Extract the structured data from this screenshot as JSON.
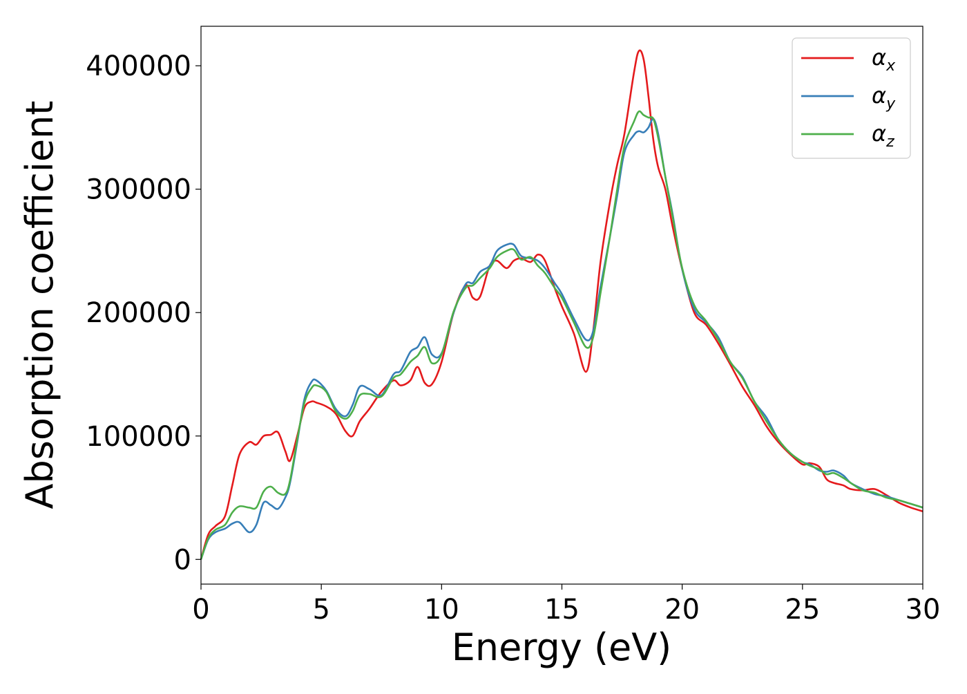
{
  "chart_data": {
    "type": "line",
    "title": "",
    "xlabel": "Energy (eV)",
    "ylabel": "Absorption coefficient",
    "xlim": [
      0,
      30
    ],
    "ylim": [
      -20000,
      432000
    ],
    "xticks": [
      0,
      5,
      10,
      15,
      20,
      25,
      30
    ],
    "yticks": [
      0,
      100000,
      200000,
      300000,
      400000
    ],
    "xtick_labels": [
      "0",
      "5",
      "10",
      "15",
      "20",
      "25",
      "30"
    ],
    "ytick_labels": [
      "0",
      "100000",
      "200000",
      "300000",
      "400000"
    ],
    "grid": false,
    "legend_position": "top-right",
    "legend": [
      {
        "symbol": "α",
        "sub": "x"
      },
      {
        "symbol": "α",
        "sub": "y"
      },
      {
        "symbol": "α",
        "sub": "z"
      }
    ],
    "series": [
      {
        "name": "αx",
        "color": "#e41a1c",
        "x": [
          0,
          0.3,
          0.6,
          1.0,
          1.3,
          1.6,
          2.0,
          2.3,
          2.6,
          2.9,
          3.2,
          3.5,
          3.7,
          4.0,
          4.3,
          4.6,
          4.8,
          5.2,
          5.6,
          6.0,
          6.3,
          6.6,
          7.0,
          7.5,
          8.0,
          8.3,
          8.7,
          9.0,
          9.3,
          9.6,
          10.0,
          10.5,
          11.0,
          11.3,
          11.6,
          12.0,
          12.3,
          12.7,
          13.0,
          13.3,
          13.7,
          14.0,
          14.3,
          14.7,
          15.0,
          15.5,
          16.0,
          16.3,
          16.6,
          17.0,
          17.3,
          17.6,
          18.0,
          18.2,
          18.4,
          18.6,
          18.8,
          19.0,
          19.3,
          19.6,
          20.0,
          20.5,
          21.0,
          21.5,
          22.0,
          22.5,
          23.0,
          23.5,
          24.0,
          24.5,
          25.0,
          25.3,
          25.7,
          26.0,
          26.3,
          26.7,
          27.0,
          27.5,
          28.0,
          28.5,
          29.0,
          29.5,
          30.0
        ],
        "y": [
          0,
          20000,
          27000,
          35000,
          60000,
          85000,
          95000,
          93000,
          100000,
          101000,
          103000,
          88000,
          80000,
          100000,
          123000,
          128000,
          127000,
          124000,
          118000,
          104000,
          100000,
          112000,
          122000,
          136000,
          145000,
          141000,
          145000,
          156000,
          143000,
          142000,
          160000,
          200000,
          222000,
          212000,
          213000,
          238000,
          242000,
          236000,
          242000,
          244000,
          241000,
          247000,
          242000,
          220000,
          205000,
          183000,
          152000,
          185000,
          240000,
          290000,
          320000,
          345000,
          395000,
          412000,
          405000,
          375000,
          340000,
          318000,
          300000,
          270000,
          235000,
          200000,
          190000,
          175000,
          158000,
          140000,
          125000,
          108000,
          95000,
          85000,
          77000,
          78000,
          75000,
          65000,
          62000,
          60000,
          57000,
          56000,
          57000,
          52000,
          46000,
          42000,
          39000
        ]
      },
      {
        "name": "αy",
        "color": "#377eb8",
        "x": [
          0,
          0.3,
          0.6,
          1.0,
          1.3,
          1.6,
          2.0,
          2.3,
          2.6,
          2.9,
          3.2,
          3.5,
          3.7,
          4.0,
          4.3,
          4.6,
          4.8,
          5.2,
          5.6,
          6.0,
          6.3,
          6.6,
          7.0,
          7.5,
          8.0,
          8.3,
          8.7,
          9.0,
          9.3,
          9.6,
          10.0,
          10.5,
          11.0,
          11.3,
          11.6,
          12.0,
          12.3,
          12.7,
          13.0,
          13.3,
          13.7,
          14.0,
          14.3,
          14.7,
          15.0,
          15.5,
          16.0,
          16.3,
          16.6,
          17.0,
          17.3,
          17.6,
          18.0,
          18.2,
          18.4,
          18.6,
          18.8,
          19.0,
          19.3,
          19.6,
          20.0,
          20.5,
          21.0,
          21.5,
          22.0,
          22.5,
          23.0,
          23.5,
          24.0,
          24.5,
          25.0,
          25.3,
          25.7,
          26.0,
          26.3,
          26.7,
          27.0,
          27.5,
          28.0,
          28.5,
          29.0,
          29.5,
          30.0
        ],
        "y": [
          0,
          16000,
          22000,
          25000,
          29000,
          30000,
          22000,
          28000,
          46000,
          44000,
          41000,
          50000,
          62000,
          95000,
          130000,
          144000,
          145000,
          137000,
          122000,
          116000,
          125000,
          140000,
          138000,
          133000,
          150000,
          153000,
          168000,
          172000,
          180000,
          166000,
          167000,
          200000,
          223000,
          224000,
          233000,
          238000,
          250000,
          255000,
          255000,
          246000,
          244000,
          242000,
          236000,
          224000,
          215000,
          195000,
          178000,
          185000,
          220000,
          262000,
          295000,
          330000,
          344000,
          347000,
          346000,
          350000,
          357000,
          345000,
          310000,
          280000,
          235000,
          203000,
          192000,
          180000,
          160000,
          148000,
          128000,
          115000,
          97000,
          86000,
          79000,
          77000,
          72000,
          71000,
          72000,
          68000,
          62000,
          57000,
          53000,
          51000,
          48000,
          45000,
          42000
        ]
      },
      {
        "name": "αz",
        "color": "#4daf4a",
        "x": [
          0,
          0.3,
          0.6,
          1.0,
          1.3,
          1.6,
          2.0,
          2.3,
          2.6,
          2.9,
          3.2,
          3.5,
          3.7,
          4.0,
          4.3,
          4.6,
          4.8,
          5.2,
          5.6,
          6.0,
          6.3,
          6.6,
          7.0,
          7.5,
          8.0,
          8.3,
          8.7,
          9.0,
          9.3,
          9.6,
          10.0,
          10.5,
          11.0,
          11.3,
          11.6,
          12.0,
          12.3,
          12.7,
          13.0,
          13.3,
          13.7,
          14.0,
          14.3,
          14.7,
          15.0,
          15.5,
          16.0,
          16.3,
          16.6,
          17.0,
          17.3,
          17.6,
          18.0,
          18.2,
          18.4,
          18.6,
          18.8,
          19.0,
          19.3,
          19.6,
          20.0,
          20.5,
          21.0,
          21.5,
          22.0,
          22.5,
          23.0,
          23.5,
          24.0,
          24.5,
          25.0,
          25.3,
          25.7,
          26.0,
          26.3,
          26.7,
          27.0,
          27.5,
          28.0,
          28.5,
          29.0,
          29.5,
          30.0
        ],
        "y": [
          0,
          17000,
          24000,
          28000,
          38000,
          43000,
          42000,
          42000,
          55000,
          59000,
          54000,
          53000,
          64000,
          97000,
          127000,
          139000,
          141000,
          136000,
          120000,
          114000,
          120000,
          133000,
          134000,
          132000,
          147000,
          150000,
          160000,
          165000,
          172000,
          159000,
          166000,
          201000,
          220000,
          222000,
          228000,
          236000,
          245000,
          250000,
          251000,
          243000,
          245000,
          238000,
          232000,
          220000,
          212000,
          192000,
          172000,
          180000,
          215000,
          262000,
          300000,
          335000,
          355000,
          363000,
          360000,
          358000,
          357000,
          342000,
          310000,
          278000,
          236000,
          206000,
          193000,
          178000,
          160000,
          147000,
          128000,
          112000,
          97000,
          86000,
          79000,
          76000,
          73000,
          69000,
          70000,
          66000,
          62000,
          56000,
          54000,
          50000,
          48000,
          45000,
          42000
        ]
      }
    ]
  }
}
